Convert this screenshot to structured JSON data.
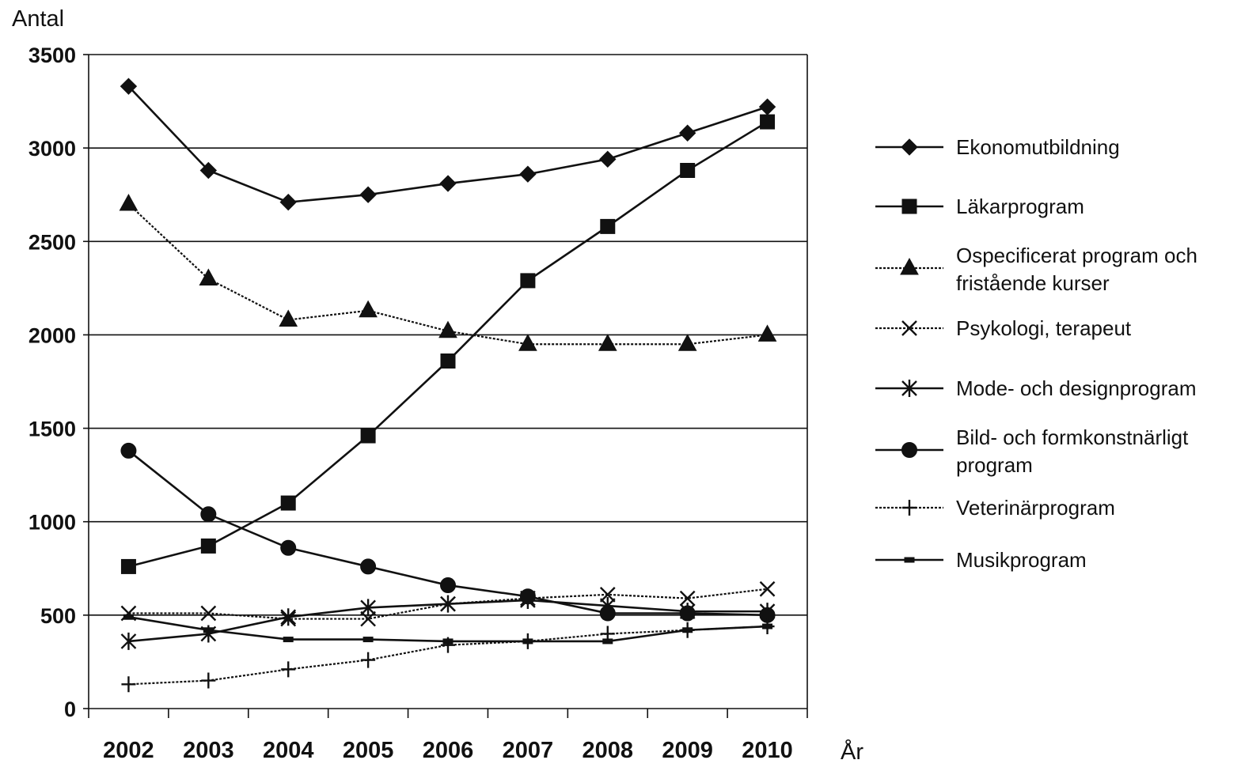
{
  "chart_data": {
    "type": "line",
    "title": "",
    "ylabel": "Antal",
    "xlabel": "År",
    "ylim": [
      0,
      3500
    ],
    "yticks": [
      0,
      500,
      1000,
      1500,
      2000,
      2500,
      3000,
      3500
    ],
    "grid": true,
    "legend_position": "right",
    "categories": [
      "2002",
      "2003",
      "2004",
      "2005",
      "2006",
      "2007",
      "2008",
      "2009",
      "2010"
    ],
    "series": [
      {
        "name": "Ekonomutbildning",
        "marker": "diamond",
        "style": "solid",
        "values": [
          3330,
          2880,
          2710,
          2750,
          2810,
          2860,
          2940,
          3080,
          3220
        ]
      },
      {
        "name": "Läkarprogram",
        "marker": "square",
        "style": "solid",
        "values": [
          760,
          870,
          1100,
          1460,
          1860,
          2290,
          2580,
          2880,
          3140
        ]
      },
      {
        "name": "Ospecificerat program och fristående kurser",
        "marker": "triangle",
        "style": "dotted",
        "values": [
          2700,
          2300,
          2080,
          2130,
          2020,
          1950,
          1950,
          1950,
          2000
        ]
      },
      {
        "name": "Psykologi, terapeut",
        "marker": "x",
        "style": "dotted",
        "values": [
          510,
          510,
          480,
          480,
          560,
          590,
          610,
          590,
          640
        ]
      },
      {
        "name": "Mode- och designprogram",
        "marker": "asterisk",
        "style": "solid",
        "values": [
          360,
          400,
          490,
          540,
          560,
          580,
          550,
          520,
          520
        ]
      },
      {
        "name": "Bild- och formkonstnärligt program",
        "marker": "circle",
        "style": "solid",
        "values": [
          1380,
          1040,
          860,
          760,
          660,
          600,
          510,
          510,
          500
        ]
      },
      {
        "name": "Veterinärprogram",
        "marker": "plus",
        "style": "dotted",
        "values": [
          130,
          150,
          210,
          260,
          340,
          360,
          400,
          420,
          440
        ]
      },
      {
        "name": "Musikprogram",
        "marker": "dash",
        "style": "solid",
        "values": [
          490,
          420,
          370,
          370,
          360,
          360,
          360,
          420,
          440
        ]
      }
    ],
    "legend_lines": [
      [
        "Ekonomutbildning"
      ],
      [
        "Läkarprogram"
      ],
      [
        "Ospecificerat program och",
        "fristående kurser"
      ],
      [
        "Psykologi, terapeut"
      ],
      [
        "Mode- och designprogram"
      ],
      [
        "Bild- och formkonstnärligt",
        "program"
      ],
      [
        "Veterinärprogram"
      ],
      [
        "Musikprogram"
      ]
    ]
  }
}
